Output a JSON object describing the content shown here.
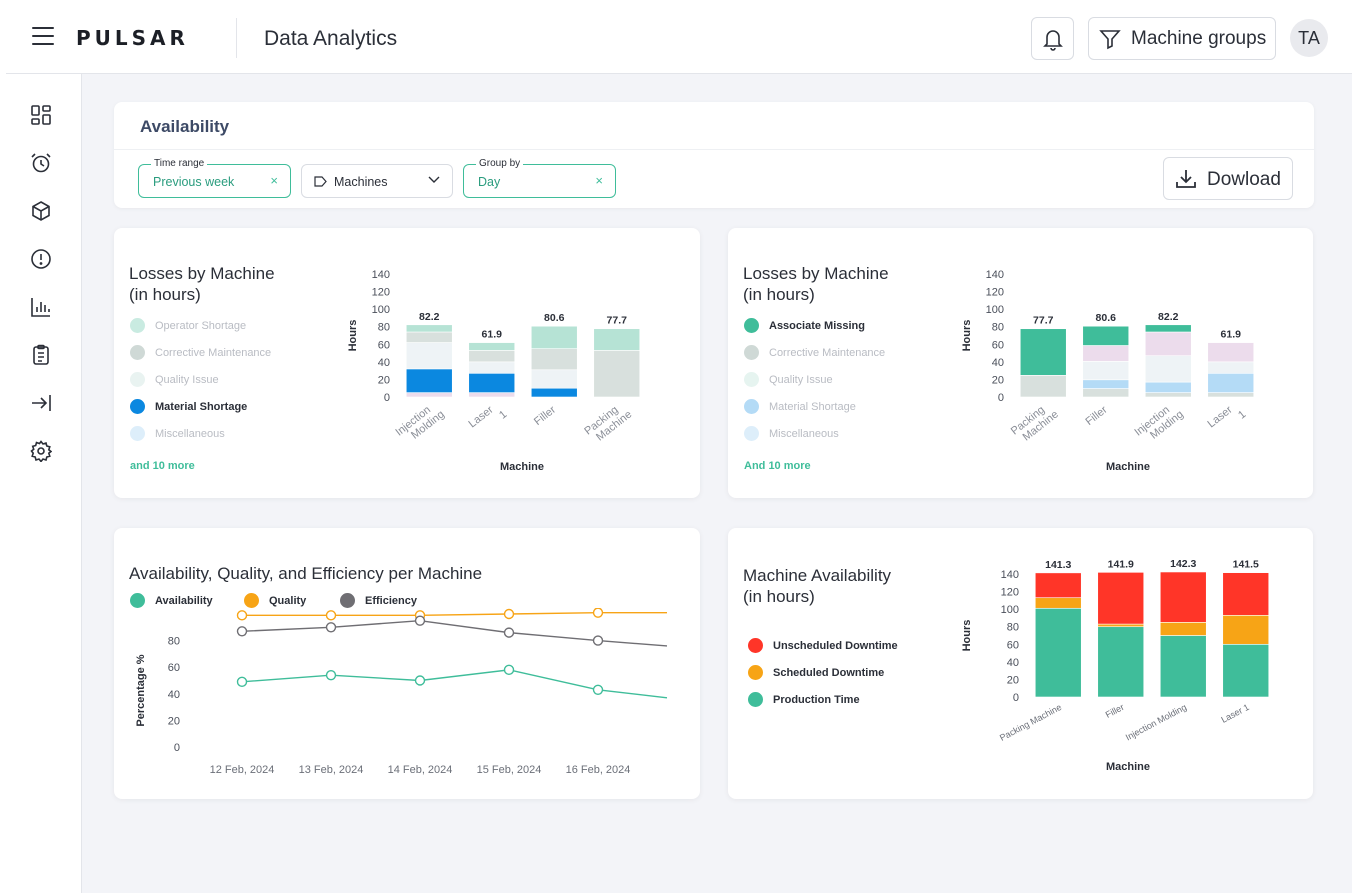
{
  "header": {
    "brand": "PULSAR",
    "title": "Data Analytics",
    "machine_groups_label": "Machine groups",
    "avatar_initials": "TA"
  },
  "sidebar": {
    "icons": [
      "dashboard-icon",
      "alarm-clock-icon",
      "cube-icon",
      "alert-circle-icon",
      "bar-chart-icon",
      "clipboard-icon",
      "collapse-arrow-icon",
      "settings-gear-icon"
    ]
  },
  "filters": {
    "title": "Availability",
    "time_range": {
      "label": "Time range",
      "value": "Previous week"
    },
    "machines": {
      "value": "Machines"
    },
    "group_by": {
      "label": "Group by",
      "value": "Day"
    },
    "download_label": "Dowload"
  },
  "colors": {
    "accent": "#3fbd9a",
    "blue": "#0b88e0",
    "orange": "#f7a416",
    "red": "#ff3528",
    "grey_line": "#6f6e73"
  },
  "card1": {
    "title_line1": "Losses by Machine",
    "title_line2": "(in hours)",
    "legend": [
      "Operator Shortage",
      "Corrective Maintenance",
      "Quality Issue",
      "Material Shortage",
      "Miscellaneous"
    ],
    "more": "and 10 more"
  },
  "card2": {
    "title_line1": "Losses by Machine",
    "title_line2": "(in hours)",
    "legend": [
      "Associate Missing",
      "Corrective Maintenance",
      "Quality Issue",
      "Material Shortage",
      "Miscellaneous"
    ],
    "more": "And 10 more"
  },
  "card3": {
    "title": "Availability, Quality, and Efficiency per Machine",
    "legend": [
      "Availability",
      "Quality",
      "Efficiency"
    ]
  },
  "card4": {
    "title_line1": "Machine Availability",
    "title_line2": "(in hours)",
    "legend": [
      "Unscheduled Downtime",
      "Scheduled Downtime",
      "Production Time"
    ]
  },
  "chart_data": [
    {
      "type": "bar",
      "stacked": true,
      "categories": [
        "Injection Molding",
        "Laser 1",
        "Filler",
        "Packing Machine"
      ],
      "totals": [
        82.2,
        61.9,
        80.6,
        77.7
      ],
      "ylabel": "Hours",
      "xlabel": "Machine",
      "ylim": [
        0,
        140
      ],
      "yticks": [
        0,
        20,
        40,
        60,
        80,
        100,
        120,
        140
      ],
      "highlighted_series": "Material Shortage",
      "series": [
        {
          "name": "Miscellaneous",
          "values": [
            5,
            5,
            0,
            0
          ]
        },
        {
          "name": "Material Shortage",
          "values": [
            27,
            22,
            10,
            0
          ]
        },
        {
          "name": "Quality Issue",
          "values": [
            30,
            13,
            21,
            0
          ]
        },
        {
          "name": "Corrective Maintenance",
          "values": [
            12,
            13,
            24,
            53
          ]
        },
        {
          "name": "Operator Shortage",
          "values": [
            8.2,
            8.9,
            25.6,
            24.7
          ]
        }
      ]
    },
    {
      "type": "bar",
      "stacked": true,
      "categories": [
        "Packing Machine",
        "Filler",
        "Injection Molding",
        "Laser 1"
      ],
      "totals": [
        77.7,
        80.6,
        82.2,
        61.9
      ],
      "ylabel": "Hours",
      "xlabel": "Machine",
      "ylim": [
        0,
        140
      ],
      "yticks": [
        0,
        20,
        40,
        60,
        80,
        100,
        120,
        140
      ],
      "highlighted_series": "Associate Missing",
      "series": [
        {
          "name": "Corrective Maintenance",
          "values": [
            24.7,
            9.6,
            5,
            5
          ]
        },
        {
          "name": "Material Shortage",
          "values": [
            0,
            10,
            12,
            22
          ]
        },
        {
          "name": "Quality Issue",
          "values": [
            0,
            21,
            30,
            13
          ]
        },
        {
          "name": "Miscellaneous",
          "values": [
            0,
            18,
            27,
            21.9
          ]
        },
        {
          "name": "Associate Missing",
          "values": [
            53,
            22,
            8.2,
            0
          ]
        }
      ]
    },
    {
      "type": "line",
      "x": [
        "12 Feb, 2024",
        "13 Feb, 2024",
        "14 Feb, 2024",
        "15 Feb, 2024",
        "16 Feb, 2024"
      ],
      "ylabel": "Percentage %",
      "ylim": [
        0,
        100
      ],
      "yticks": [
        0,
        20,
        40,
        60,
        80
      ],
      "series": [
        {
          "name": "Availability",
          "values": [
            49,
            54,
            50,
            58,
            43
          ],
          "trail_end": 37
        },
        {
          "name": "Quality",
          "values": [
            99,
            99,
            99,
            100,
            101
          ],
          "trail_end": 101
        },
        {
          "name": "Efficiency",
          "values": [
            87,
            90,
            95,
            86,
            80
          ],
          "trail_end": 76
        }
      ]
    },
    {
      "type": "bar",
      "stacked": true,
      "categories": [
        "Packing Machine",
        "Filler",
        "Injection Molding",
        "Laser 1"
      ],
      "totals": [
        141.3,
        141.9,
        142.3,
        141.5
      ],
      "ylabel": "Hours",
      "xlabel": "Machine",
      "ylim": [
        0,
        140
      ],
      "yticks": [
        0,
        20,
        40,
        60,
        80,
        100,
        120,
        140
      ],
      "series": [
        {
          "name": "Production Time",
          "values": [
            101,
            80,
            70,
            60
          ]
        },
        {
          "name": "Scheduled Downtime",
          "values": [
            12,
            3,
            15,
            33
          ]
        },
        {
          "name": "Unscheduled Downtime",
          "values": [
            28.3,
            58.9,
            57.3,
            48.5
          ]
        }
      ]
    }
  ]
}
